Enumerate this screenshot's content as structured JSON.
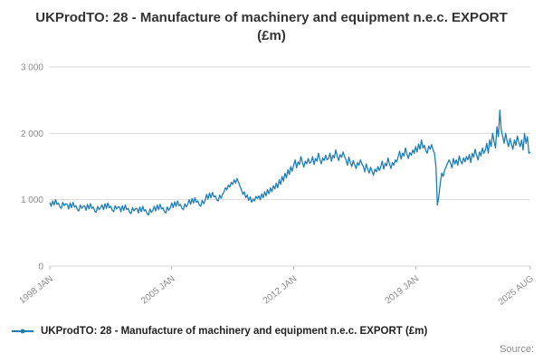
{
  "title": "UKProdTO: 28 - Manufacture of machinery and equipment n.e.c. EXPORT (£m)",
  "legend": {
    "label": "UKProdTO: 28 - Manufacture of machinery and equipment n.e.c. EXPORT (£m)"
  },
  "source_label": "Source:",
  "colors": {
    "line": "#1d7db8",
    "grid": "#d9d9d9",
    "axis": "#bbbbbb",
    "tick_text": "#8c8c8c",
    "title_text": "#333333"
  },
  "chart_data": {
    "type": "line",
    "title": "UKProdTO: 28 - Manufacture of machinery and equipment n.e.c. EXPORT (£m)",
    "xlabel": "",
    "ylabel": "",
    "frequency": "monthly",
    "x_start": "1998-01",
    "x_end": "2025-08",
    "ylim": [
      0,
      3000
    ],
    "grid": true,
    "legend_position": "bottom-left",
    "y_ticks": [
      {
        "value": 0,
        "label": "0"
      },
      {
        "value": 1000,
        "label": "1 000"
      },
      {
        "value": 2000,
        "label": "2 000"
      },
      {
        "value": 3000,
        "label": "3 000"
      }
    ],
    "x_ticks": [
      {
        "index": 0,
        "label": "1998 JAN"
      },
      {
        "index": 84,
        "label": "2005 JAN"
      },
      {
        "index": 168,
        "label": "2012 JAN"
      },
      {
        "index": 252,
        "label": "2019 JAN"
      },
      {
        "index": 331,
        "label": "2025 AUG"
      }
    ],
    "series": [
      {
        "name": "UKProdTO: 28 - Manufacture of machinery and equipment n.e.c. EXPORT (£m)",
        "values": [
          960,
          900,
          980,
          920,
          1000,
          930,
          950,
          890,
          870,
          960,
          910,
          940,
          930,
          860,
          950,
          880,
          960,
          890,
          910,
          850,
          830,
          920,
          870,
          900,
          910,
          840,
          930,
          860,
          940,
          870,
          890,
          830,
          810,
          900,
          850,
          880,
          920,
          850,
          940,
          870,
          950,
          880,
          900,
          840,
          820,
          910,
          860,
          890,
          890,
          820,
          910,
          840,
          920,
          850,
          870,
          810,
          790,
          880,
          830,
          860,
          870,
          800,
          890,
          820,
          900,
          830,
          850,
          790,
          770,
          860,
          810,
          840,
          900,
          830,
          920,
          850,
          930,
          860,
          880,
          820,
          800,
          890,
          840,
          880,
          950,
          880,
          970,
          900,
          980,
          910,
          930,
          870,
          850,
          940,
          890,
          930,
          1000,
          930,
          1020,
          950,
          1030,
          960,
          980,
          920,
          900,
          990,
          940,
          990,
          1080,
          1010,
          1100,
          1030,
          1110,
          1040,
          1060,
          1000,
          980,
          1070,
          1020,
          1080,
          1120,
          1180,
          1150,
          1220,
          1190,
          1260,
          1230,
          1300,
          1250,
          1320,
          1270,
          1200,
          1150,
          1080,
          1120,
          1030,
          1070,
          990,
          1040,
          960,
          1010,
          980,
          1050,
          1020,
          1060,
          1000,
          1090,
          1030,
          1120,
          1060,
          1150,
          1090,
          1180,
          1120,
          1210,
          1160,
          1250,
          1180,
          1300,
          1230,
          1350,
          1280,
          1400,
          1330,
          1450,
          1380,
          1500,
          1430,
          1520,
          1600,
          1480,
          1570,
          1530,
          1650,
          1560,
          1490,
          1580,
          1540,
          1620,
          1550,
          1570,
          1650,
          1530,
          1620,
          1580,
          1700,
          1610,
          1540,
          1630,
          1590,
          1670,
          1600,
          1620,
          1700,
          1580,
          1670,
          1630,
          1750,
          1660,
          1590,
          1680,
          1640,
          1720,
          1650,
          1600,
          1520,
          1640,
          1560,
          1500,
          1590,
          1530,
          1470,
          1560,
          1520,
          1600,
          1540,
          1500,
          1420,
          1540,
          1460,
          1400,
          1490,
          1430,
          1370,
          1460,
          1420,
          1500,
          1440,
          1500,
          1580,
          1460,
          1550,
          1510,
          1630,
          1540,
          1470,
          1560,
          1520,
          1600,
          1570,
          1650,
          1730,
          1610,
          1700,
          1660,
          1780,
          1690,
          1620,
          1710,
          1670,
          1750,
          1700,
          1800,
          1720,
          1840,
          1760,
          1900,
          1780,
          1820,
          1740,
          1700,
          1810,
          1760,
          1830,
          1750,
          1700,
          1500,
          920,
          1050,
          1250,
          1400,
          1350,
          1450,
          1500,
          1550,
          1600,
          1550,
          1480,
          1620,
          1540,
          1600,
          1520,
          1660,
          1580,
          1540,
          1630,
          1570,
          1650,
          1600,
          1680,
          1560,
          1700,
          1640,
          1760,
          1670,
          1600,
          1720,
          1660,
          1780,
          1700,
          1750,
          1850,
          1700,
          1900,
          1800,
          2000,
          1880,
          1780,
          2100,
          1950,
          2350,
          2050,
          1950,
          1850,
          2000,
          1880,
          1800,
          1920,
          1840,
          1760,
          1900,
          1820,
          1960,
          1870,
          1800,
          1900,
          1750,
          2000,
          1850,
          1950,
          1700,
          1720
        ]
      }
    ]
  }
}
